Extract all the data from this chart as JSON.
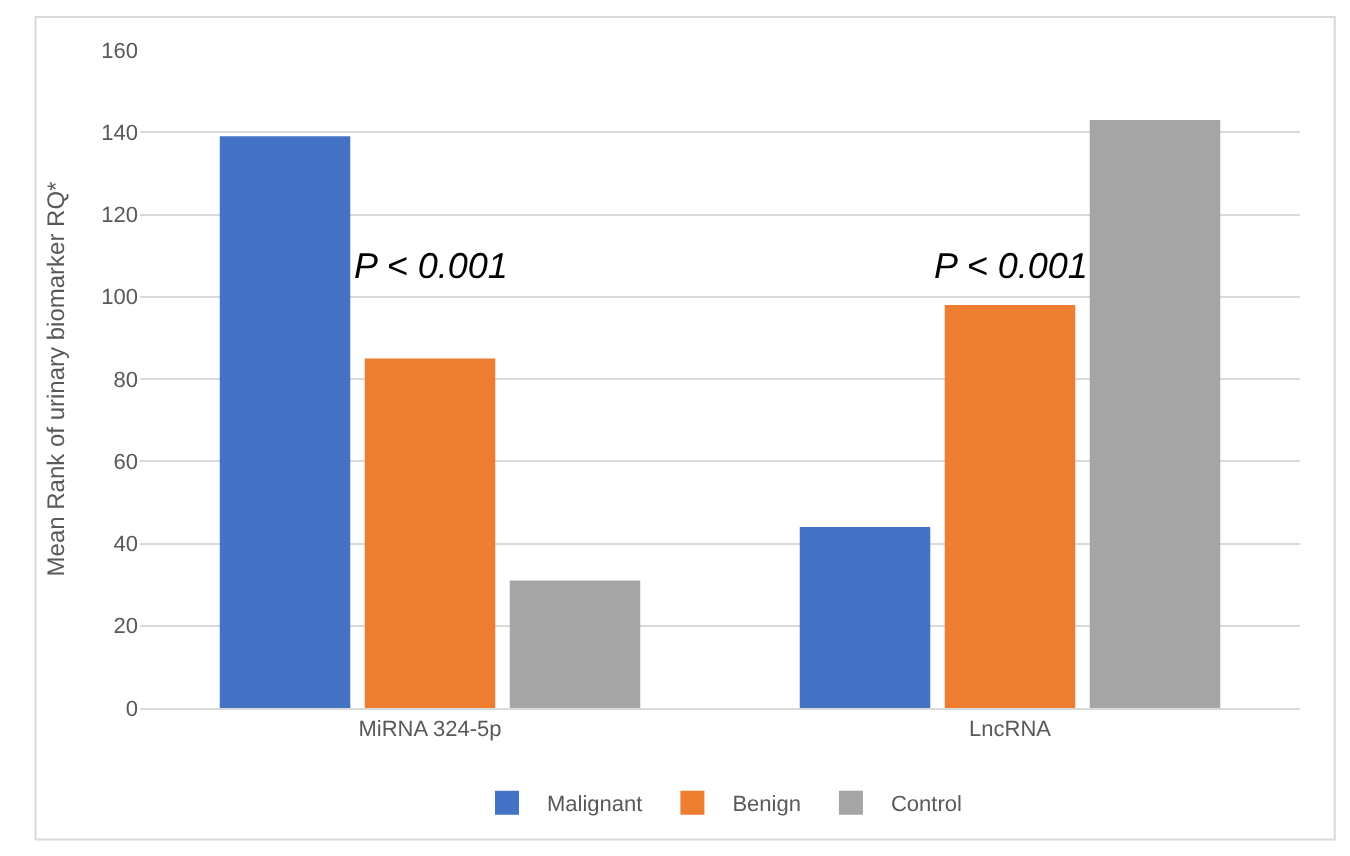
{
  "chart_data": {
    "type": "bar",
    "ylabel": "Mean Rank of urinary biomarker RQ*",
    "categories": [
      "MiRNA 324-5p",
      "LncRNA"
    ],
    "series": [
      {
        "name": "Malignant",
        "color": "#4472c4",
        "values": [
          139,
          44
        ]
      },
      {
        "name": "Benign",
        "color": "#ed7d31",
        "values": [
          85,
          98
        ]
      },
      {
        "name": "Control",
        "color": "#a5a5a5",
        "values": [
          31,
          143
        ]
      }
    ],
    "ylim": [
      0,
      160
    ],
    "yticks": [
      0,
      20,
      40,
      60,
      80,
      100,
      120,
      140,
      160
    ],
    "grid": "y",
    "legend": "bottom",
    "annotations": [
      "P < 0.001",
      "P < 0.001"
    ]
  }
}
